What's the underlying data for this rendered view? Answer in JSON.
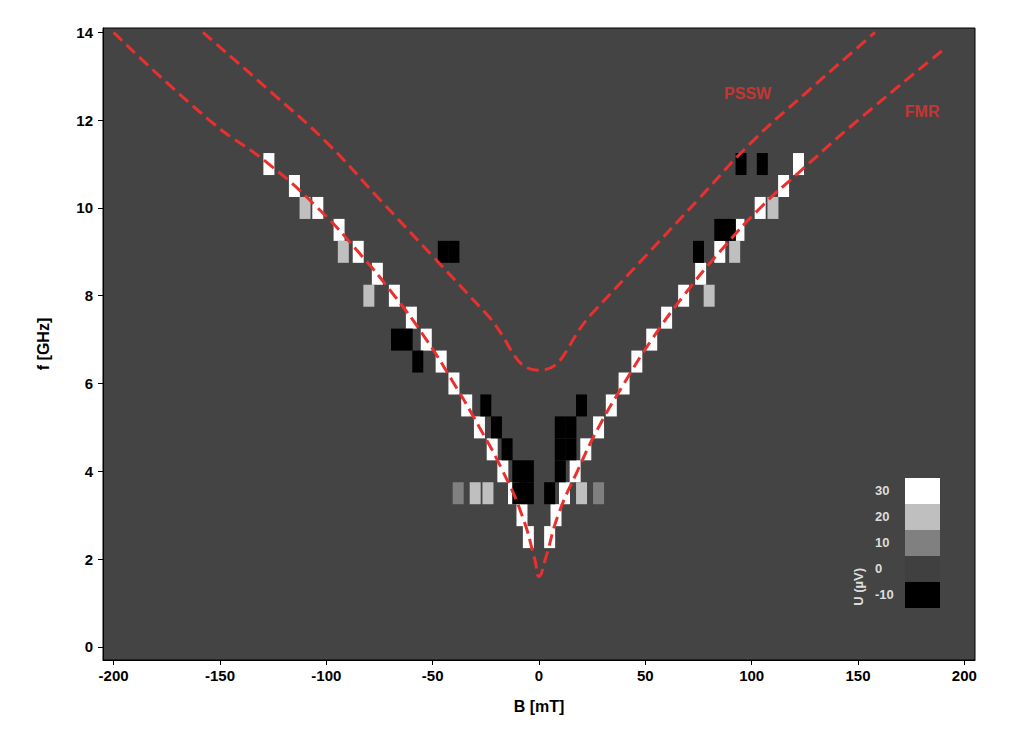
{
  "chart_data": {
    "type": "heatmap",
    "x_label": "B [mT]",
    "y_label": "f [GHz]",
    "xlim": [
      -205,
      205
    ],
    "ylim": [
      -0.3,
      14.1
    ],
    "xticks": [
      -200,
      -150,
      -100,
      -50,
      0,
      50,
      100,
      150,
      200
    ],
    "yticks": [
      0,
      2,
      4,
      6,
      8,
      10,
      12,
      14
    ],
    "grid": false,
    "series": [
      {
        "name": "PSSW",
        "type": "line",
        "color": "#e8312f",
        "line_style": "dashed",
        "marker": "none",
        "values": [
          [
            -158,
            14
          ],
          [
            -125,
            12.6
          ],
          [
            -100,
            11.5
          ],
          [
            -75,
            10.2
          ],
          [
            -50,
            8.9
          ],
          [
            -25,
            7.6
          ],
          [
            0,
            6.3
          ],
          [
            25,
            7.6
          ],
          [
            50,
            8.9
          ],
          [
            75,
            10.2
          ],
          [
            100,
            11.5
          ],
          [
            125,
            12.6
          ],
          [
            158,
            14
          ]
        ]
      },
      {
        "name": "FMR",
        "type": "line",
        "color": "#e8312f",
        "line_style": "dashed",
        "marker": "none",
        "values": [
          [
            -200,
            14
          ],
          [
            -155,
            12
          ],
          [
            -127,
            11
          ],
          [
            -104,
            10
          ],
          [
            -85,
            9
          ],
          [
            -68,
            8
          ],
          [
            -53,
            7
          ],
          [
            -40,
            6
          ],
          [
            -28,
            5
          ],
          [
            -17,
            4
          ],
          [
            -8,
            3
          ],
          [
            -2,
            2
          ],
          [
            0,
            1.6
          ],
          [
            3,
            2
          ],
          [
            9,
            3
          ],
          [
            18,
            4
          ],
          [
            28,
            5
          ],
          [
            40,
            6
          ],
          [
            53,
            7
          ],
          [
            68,
            8
          ],
          [
            85,
            9
          ],
          [
            104,
            10
          ],
          [
            122,
            10.8
          ],
          [
            150,
            12
          ],
          [
            190,
            13.6
          ]
        ]
      }
    ],
    "annotations": [
      {
        "text": "PSSW",
        "x": 87,
        "y": 12.6,
        "color": "#e8312f"
      },
      {
        "text": "FMR",
        "x": 172,
        "y": 12.2,
        "color": "#e8312f"
      }
    ],
    "cells": {
      "points": [
        [
          -5,
          2.5,
          30
        ],
        [
          -8,
          3,
          30
        ],
        [
          -12,
          3.5,
          30
        ],
        [
          -17,
          4,
          30
        ],
        [
          -22,
          4.5,
          30
        ],
        [
          -28,
          5,
          30
        ],
        [
          -34,
          5.5,
          30
        ],
        [
          -40,
          6,
          30
        ],
        [
          -46,
          6.5,
          30
        ],
        [
          -53,
          7,
          30
        ],
        [
          -60,
          7.5,
          30
        ],
        [
          -68,
          8,
          30
        ],
        [
          -76,
          8.5,
          30
        ],
        [
          -85,
          9,
          30
        ],
        [
          -94,
          9.5,
          30
        ],
        [
          -104,
          10,
          30
        ],
        [
          -115,
          10.5,
          30
        ],
        [
          -127,
          11,
          30
        ],
        [
          5,
          2.5,
          30
        ],
        [
          8,
          3,
          30
        ],
        [
          12,
          3.5,
          30
        ],
        [
          17,
          4,
          30
        ],
        [
          22,
          4.5,
          30
        ],
        [
          28,
          5,
          30
        ],
        [
          34,
          5.5,
          30
        ],
        [
          40,
          6,
          30
        ],
        [
          46,
          6.5,
          30
        ],
        [
          53,
          7,
          30
        ],
        [
          60,
          7.5,
          30
        ],
        [
          68,
          8,
          30
        ],
        [
          76,
          8.5,
          30
        ],
        [
          85,
          9,
          30
        ],
        [
          94,
          9.5,
          30
        ],
        [
          104,
          10,
          30
        ],
        [
          115,
          10.5,
          30
        ],
        [
          122,
          11,
          30
        ],
        [
          -30,
          3.5,
          20
        ],
        [
          -38,
          3.5,
          10
        ],
        [
          -24,
          3.5,
          20
        ],
        [
          20,
          3.5,
          20
        ],
        [
          28,
          3.5,
          10
        ],
        [
          -80,
          8,
          20
        ],
        [
          -92,
          9,
          20
        ],
        [
          -110,
          10,
          20
        ],
        [
          80,
          8,
          20
        ],
        [
          92,
          9,
          20
        ],
        [
          110,
          10,
          20
        ],
        [
          -10,
          4,
          -10
        ],
        [
          -5,
          4,
          -10
        ],
        [
          -10,
          3.5,
          -10
        ],
        [
          -5,
          3.5,
          -10
        ],
        [
          -15,
          4.5,
          -10
        ],
        [
          -20,
          5,
          -10
        ],
        [
          -25,
          5.5,
          -10
        ],
        [
          10,
          4.5,
          -10
        ],
        [
          15,
          5,
          -10
        ],
        [
          10,
          5,
          -10
        ],
        [
          20,
          5.5,
          -10
        ],
        [
          5,
          3.5,
          -10
        ],
        [
          10,
          4,
          -10
        ],
        [
          15,
          4.5,
          -10
        ],
        [
          -62,
          7,
          -10
        ],
        [
          -67,
          7,
          -10
        ],
        [
          -57,
          6.5,
          -10
        ],
        [
          -45,
          9,
          -10
        ],
        [
          -40,
          9,
          -10
        ],
        [
          75,
          9,
          -10
        ],
        [
          85,
          9.5,
          -10
        ],
        [
          90,
          9.5,
          -10
        ],
        [
          95,
          11,
          -10
        ],
        [
          105,
          11,
          -10
        ]
      ]
    },
    "colorbar": {
      "label": "U (µV)",
      "range": [
        -10,
        30
      ],
      "ticks": [
        -10,
        0,
        10,
        20,
        30
      ],
      "colors": [
        "#000000",
        "#ffffff"
      ]
    }
  }
}
